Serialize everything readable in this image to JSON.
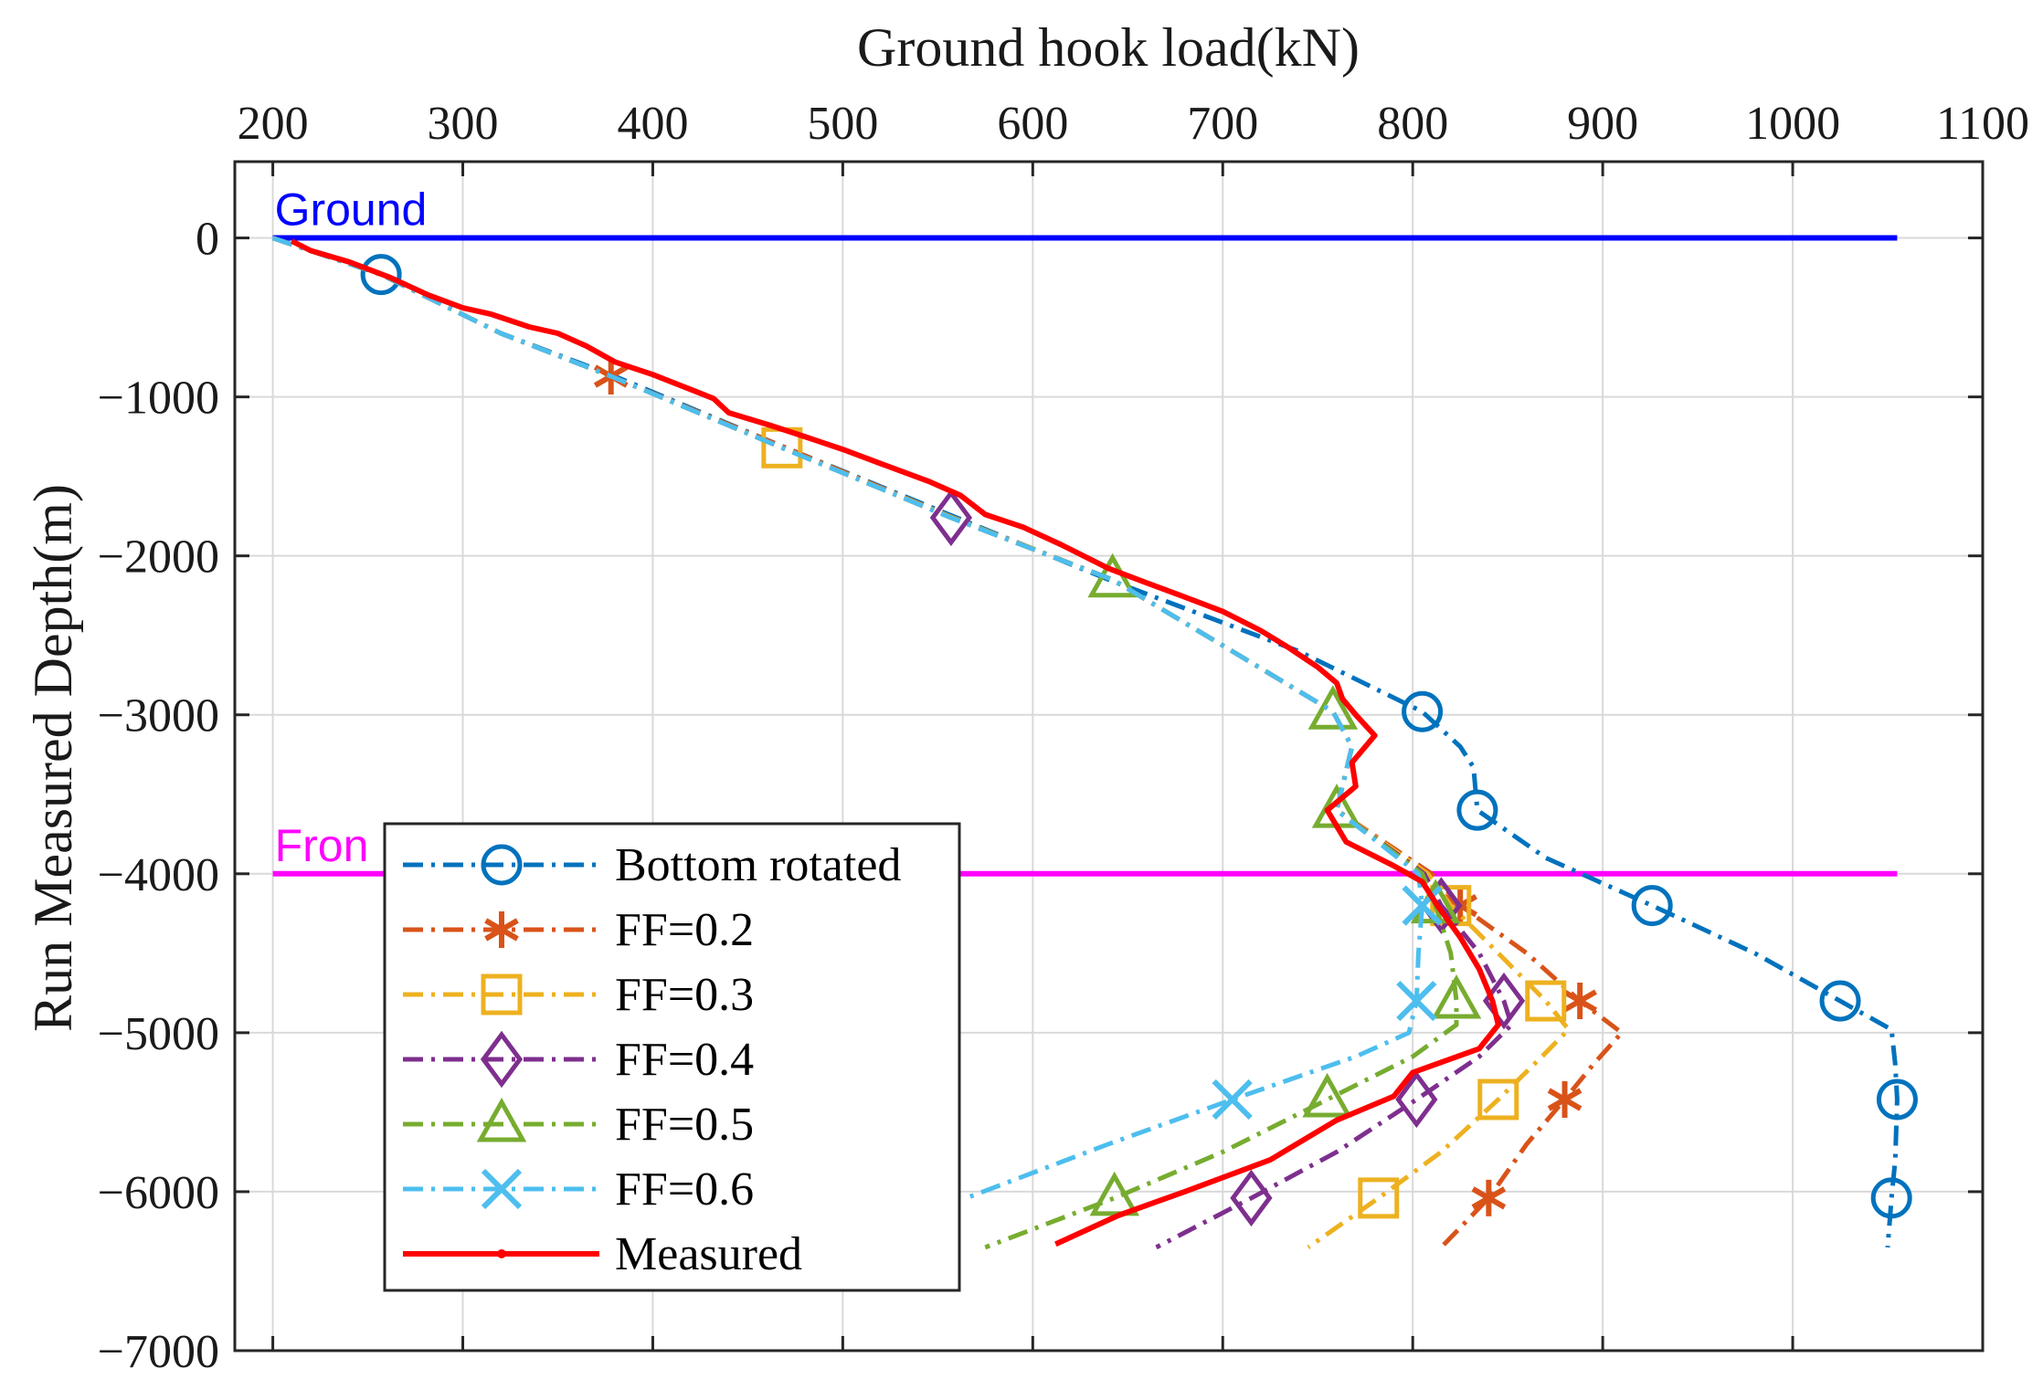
{
  "chart_data": {
    "type": "line",
    "xlabel": "Ground hook load(kN)",
    "ylabel": "Run Measured Depth(m)",
    "xlim": [
      180,
      1100
    ],
    "ylim": [
      -7000,
      480
    ],
    "xticks": [
      200,
      300,
      400,
      500,
      600,
      700,
      800,
      900,
      1000,
      1100
    ],
    "yticks": [
      0,
      -1000,
      -2000,
      -3000,
      -4000,
      -5000,
      -6000,
      -7000
    ],
    "ytick_labels": [
      "0",
      "−1000",
      "−2000",
      "−3000",
      "−4000",
      "−5000",
      "−6000",
      "−7000"
    ],
    "grid": true,
    "legend_position": "lower-left",
    "reference_lines": [
      {
        "label": "Ground",
        "depth": 0,
        "color": "#0000ff"
      },
      {
        "label": "Fron",
        "depth": -4000,
        "color": "#ff00ff"
      }
    ],
    "series": [
      {
        "name": "Bottom rotated",
        "color": "#0072bd",
        "marker": "circle",
        "points": [
          [
            200,
            0
          ],
          [
            257,
            -230
          ],
          [
            320,
            -600
          ],
          [
            380,
            -870
          ],
          [
            470,
            -1320
          ],
          [
            560,
            -1760
          ],
          [
            640,
            -2150
          ],
          [
            740,
            -2600
          ],
          [
            805,
            -2980
          ],
          [
            825,
            -3200
          ],
          [
            832,
            -3330
          ],
          [
            834,
            -3600
          ],
          [
            870,
            -3900
          ],
          [
            926,
            -4200
          ],
          [
            980,
            -4500
          ],
          [
            1025,
            -4800
          ],
          [
            1052,
            -4980
          ],
          [
            1054,
            -5200
          ],
          [
            1055,
            -5420
          ],
          [
            1054,
            -5800
          ],
          [
            1052,
            -6040
          ],
          [
            1050,
            -6350
          ]
        ],
        "markers": [
          [
            257,
            -230
          ],
          [
            805,
            -2980
          ],
          [
            834,
            -3600
          ],
          [
            926,
            -4200
          ],
          [
            1025,
            -4800
          ],
          [
            1055,
            -5420
          ],
          [
            1052,
            -6040
          ]
        ]
      },
      {
        "name": "FF=0.2",
        "color": "#d95319",
        "marker": "asterisk",
        "points": [
          [
            200,
            0
          ],
          [
            257,
            -230
          ],
          [
            320,
            -600
          ],
          [
            378,
            -870
          ],
          [
            470,
            -1320
          ],
          [
            558,
            -1760
          ],
          [
            642,
            -2150
          ],
          [
            705,
            -2600
          ],
          [
            758,
            -2980
          ],
          [
            768,
            -3200
          ],
          [
            760,
            -3600
          ],
          [
            810,
            -4000
          ],
          [
            825,
            -4200
          ],
          [
            860,
            -4500
          ],
          [
            888,
            -4800
          ],
          [
            910,
            -5000
          ],
          [
            895,
            -5200
          ],
          [
            880,
            -5420
          ],
          [
            860,
            -5700
          ],
          [
            840,
            -6040
          ],
          [
            815,
            -6350
          ]
        ],
        "markers": [
          [
            378,
            -870
          ],
          [
            825,
            -4200
          ],
          [
            888,
            -4800
          ],
          [
            880,
            -5420
          ],
          [
            840,
            -6040
          ]
        ]
      },
      {
        "name": "FF=0.3",
        "color": "#edb120",
        "marker": "square",
        "points": [
          [
            200,
            0
          ],
          [
            257,
            -230
          ],
          [
            320,
            -600
          ],
          [
            378,
            -870
          ],
          [
            468,
            -1320
          ],
          [
            558,
            -1760
          ],
          [
            642,
            -2150
          ],
          [
            705,
            -2600
          ],
          [
            758,
            -2980
          ],
          [
            768,
            -3200
          ],
          [
            760,
            -3600
          ],
          [
            808,
            -4000
          ],
          [
            820,
            -4200
          ],
          [
            845,
            -4500
          ],
          [
            870,
            -4800
          ],
          [
            882,
            -4980
          ],
          [
            868,
            -5150
          ],
          [
            845,
            -5420
          ],
          [
            815,
            -5750
          ],
          [
            782,
            -6040
          ],
          [
            745,
            -6350
          ]
        ],
        "markers": [
          [
            468,
            -1320
          ],
          [
            820,
            -4200
          ],
          [
            870,
            -4800
          ],
          [
            845,
            -5420
          ],
          [
            782,
            -6040
          ]
        ]
      },
      {
        "name": "FF=0.4",
        "color": "#7e2f8e",
        "marker": "diamond",
        "points": [
          [
            200,
            0
          ],
          [
            257,
            -230
          ],
          [
            320,
            -600
          ],
          [
            378,
            -870
          ],
          [
            468,
            -1320
          ],
          [
            557,
            -1760
          ],
          [
            642,
            -2150
          ],
          [
            705,
            -2600
          ],
          [
            758,
            -2980
          ],
          [
            768,
            -3200
          ],
          [
            760,
            -3600
          ],
          [
            806,
            -4000
          ],
          [
            815,
            -4200
          ],
          [
            835,
            -4500
          ],
          [
            848,
            -4800
          ],
          [
            852,
            -4950
          ],
          [
            835,
            -5150
          ],
          [
            802,
            -5420
          ],
          [
            760,
            -5750
          ],
          [
            715,
            -6040
          ],
          [
            665,
            -6350
          ]
        ],
        "markers": [
          [
            557,
            -1760
          ],
          [
            815,
            -4200
          ],
          [
            848,
            -4800
          ],
          [
            802,
            -5420
          ],
          [
            715,
            -6040
          ]
        ]
      },
      {
        "name": "FF=0.5",
        "color": "#77ac30",
        "marker": "triangle",
        "points": [
          [
            200,
            0
          ],
          [
            257,
            -230
          ],
          [
            320,
            -600
          ],
          [
            378,
            -870
          ],
          [
            468,
            -1320
          ],
          [
            557,
            -1760
          ],
          [
            642,
            -2150
          ],
          [
            705,
            -2600
          ],
          [
            758,
            -2980
          ],
          [
            768,
            -3200
          ],
          [
            760,
            -3600
          ],
          [
            805,
            -4000
          ],
          [
            812,
            -4200
          ],
          [
            820,
            -4500
          ],
          [
            823,
            -4800
          ],
          [
            823,
            -4950
          ],
          [
            800,
            -5150
          ],
          [
            755,
            -5420
          ],
          [
            700,
            -5750
          ],
          [
            643,
            -6040
          ],
          [
            575,
            -6350
          ]
        ],
        "markers": [
          [
            642,
            -2150
          ],
          [
            758,
            -2980
          ],
          [
            760,
            -3600
          ],
          [
            812,
            -4200
          ],
          [
            823,
            -4800
          ],
          [
            755,
            -5420
          ],
          [
            643,
            -6040
          ]
        ]
      },
      {
        "name": "FF=0.6",
        "color": "#4dbeee",
        "marker": "x",
        "points": [
          [
            200,
            0
          ],
          [
            257,
            -230
          ],
          [
            320,
            -600
          ],
          [
            378,
            -870
          ],
          [
            468,
            -1320
          ],
          [
            557,
            -1760
          ],
          [
            642,
            -2150
          ],
          [
            705,
            -2600
          ],
          [
            758,
            -2980
          ],
          [
            768,
            -3200
          ],
          [
            760,
            -3600
          ],
          [
            803,
            -4000
          ],
          [
            805,
            -4200
          ],
          [
            803,
            -4500
          ],
          [
            802,
            -4800
          ],
          [
            798,
            -5000
          ],
          [
            770,
            -5150
          ],
          [
            705,
            -5420
          ],
          [
            640,
            -5700
          ],
          [
            565,
            -6040
          ]
        ],
        "markers": [
          [
            805,
            -4200
          ],
          [
            802,
            -4800
          ],
          [
            705,
            -5420
          ]
        ]
      },
      {
        "name": "Measured",
        "color": "#ff0000",
        "marker": "dot",
        "points": [
          [
            210,
            -20
          ],
          [
            220,
            -80
          ],
          [
            240,
            -150
          ],
          [
            262,
            -250
          ],
          [
            282,
            -360
          ],
          [
            300,
            -440
          ],
          [
            315,
            -480
          ],
          [
            335,
            -560
          ],
          [
            350,
            -600
          ],
          [
            365,
            -680
          ],
          [
            380,
            -780
          ],
          [
            400,
            -860
          ],
          [
            415,
            -930
          ],
          [
            432,
            -1010
          ],
          [
            440,
            -1100
          ],
          [
            462,
            -1180
          ],
          [
            480,
            -1250
          ],
          [
            500,
            -1330
          ],
          [
            520,
            -1420
          ],
          [
            545,
            -1530
          ],
          [
            562,
            -1620
          ],
          [
            575,
            -1740
          ],
          [
            595,
            -1820
          ],
          [
            615,
            -1930
          ],
          [
            640,
            -2080
          ],
          [
            660,
            -2170
          ],
          [
            678,
            -2250
          ],
          [
            700,
            -2350
          ],
          [
            720,
            -2470
          ],
          [
            735,
            -2580
          ],
          [
            750,
            -2700
          ],
          [
            760,
            -2800
          ],
          [
            763,
            -2900
          ],
          [
            770,
            -3000
          ],
          [
            780,
            -3130
          ],
          [
            768,
            -3300
          ],
          [
            770,
            -3450
          ],
          [
            755,
            -3600
          ],
          [
            765,
            -3800
          ],
          [
            790,
            -3950
          ],
          [
            805,
            -4050
          ],
          [
            813,
            -4200
          ],
          [
            825,
            -4400
          ],
          [
            835,
            -4600
          ],
          [
            842,
            -4800
          ],
          [
            845,
            -4950
          ],
          [
            835,
            -5100
          ],
          [
            800,
            -5250
          ],
          [
            790,
            -5400
          ],
          [
            760,
            -5550
          ],
          [
            725,
            -5800
          ],
          [
            680,
            -6000
          ],
          [
            645,
            -6150
          ],
          [
            612,
            -6330
          ]
        ]
      }
    ],
    "legend": [
      "Bottom rotated",
      "FF=0.2",
      "FF=0.3",
      "FF=0.4",
      "FF=0.5",
      "FF=0.6",
      "Measured"
    ]
  }
}
